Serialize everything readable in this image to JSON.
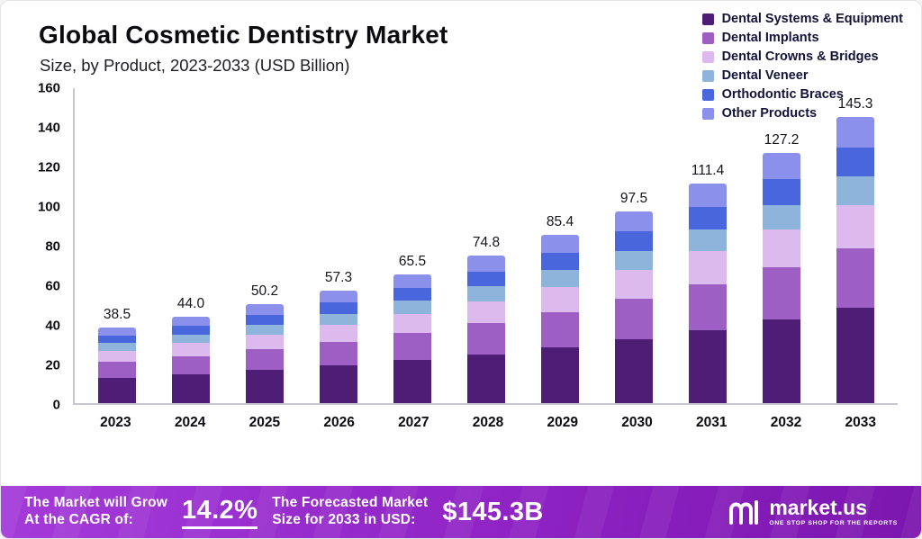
{
  "header": {
    "title": "Global Cosmetic Dentistry Market",
    "subtitle": "Size, by Product, 2023-2033 (USD Billion)"
  },
  "chart_data": {
    "type": "bar",
    "stacked": true,
    "title": "Global Cosmetic Dentistry Market Size, by Product, 2023-2033 (USD Billion)",
    "categories": [
      "2023",
      "2024",
      "2025",
      "2026",
      "2027",
      "2028",
      "2029",
      "2030",
      "2031",
      "2032",
      "2033"
    ],
    "totals": [
      38.5,
      44.0,
      50.2,
      57.3,
      65.5,
      74.8,
      85.4,
      97.5,
      111.4,
      127.2,
      145.3
    ],
    "series": [
      {
        "name": "Dental Systems & Equipment",
        "color": "#4e1e77",
        "values": [
          12.8,
          14.6,
          16.7,
          19.0,
          21.8,
          24.9,
          28.4,
          32.4,
          37.1,
          42.3,
          48.3
        ]
      },
      {
        "name": "Dental Implants",
        "color": "#9d5fc3",
        "values": [
          8.1,
          9.3,
          10.6,
          12.1,
          13.8,
          15.7,
          17.9,
          20.5,
          23.4,
          26.7,
          30.5
        ]
      },
      {
        "name": "Dental Crowns & Bridges",
        "color": "#dcbaee",
        "values": [
          5.8,
          6.6,
          7.5,
          8.6,
          9.8,
          11.2,
          12.8,
          14.6,
          16.7,
          19.1,
          21.8
        ]
      },
      {
        "name": "Dental Veneer",
        "color": "#8fb4dc",
        "values": [
          3.8,
          4.4,
          5.0,
          5.7,
          6.6,
          7.5,
          8.5,
          9.8,
          11.1,
          12.7,
          14.5
        ]
      },
      {
        "name": "Orthodontic Braces",
        "color": "#4a66dd",
        "values": [
          3.9,
          4.4,
          5.0,
          5.8,
          6.5,
          7.5,
          8.6,
          9.9,
          11.3,
          12.9,
          14.7
        ]
      },
      {
        "name": "Other Products",
        "color": "#8b90ea",
        "values": [
          4.1,
          4.7,
          5.4,
          6.1,
          7.0,
          8.0,
          9.2,
          10.3,
          11.8,
          13.5,
          15.5
        ]
      }
    ],
    "ylim": [
      0,
      160
    ],
    "yticks": [
      160,
      140,
      120,
      100,
      80,
      60,
      40,
      20,
      0
    ],
    "legend_position": "top-right",
    "grid": false
  },
  "footer": {
    "growth_line1": "The Market will Grow",
    "growth_line2": "At the CAGR of:",
    "cagr_value": "14.2%",
    "forecast_line1": "The Forecasted Market",
    "forecast_line2": "Size for 2033 in USD:",
    "forecast_value": "$145.3B",
    "brand_name": "market.us",
    "brand_tagline": "ONE STOP SHOP FOR THE REPORTS"
  },
  "colors": {
    "footer_gradient_start": "#a43bd9",
    "footer_gradient_mid": "#8f23c4",
    "footer_gradient_end": "#7b16ae",
    "footer_text": "#ffffff",
    "axis_line": "#c7c8cf"
  }
}
